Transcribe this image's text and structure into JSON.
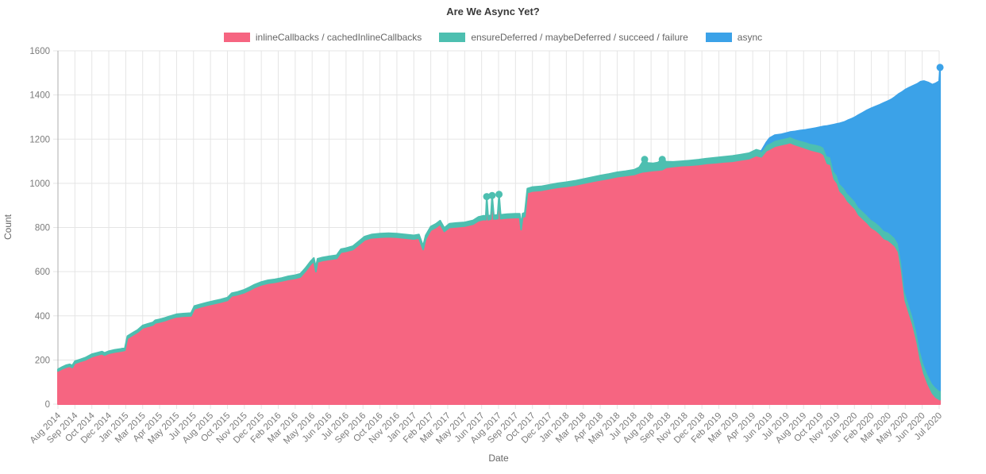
{
  "chart_data": {
    "type": "area",
    "stacked": true,
    "title": "Are We Async Yet?",
    "xlabel": "Date",
    "ylabel": "Count",
    "ylim": [
      0,
      1600
    ],
    "yticks": [
      0,
      200,
      400,
      600,
      800,
      1000,
      1200,
      1400,
      1600
    ],
    "grid": true,
    "legend_position": "top",
    "colors": {
      "background": "#ffffff",
      "grid": "#e5e5e5",
      "axis_line": "#aeaeae",
      "tick_text": "#7b7b7b",
      "title_text": "#3a3a3a",
      "axis_title_text": "#666666"
    },
    "series": [
      {
        "name": "inlineCallbacks / cachedInlineCallbacks",
        "color": "#f66581"
      },
      {
        "name": "ensureDeferred / maybeDeferred / succeed / failure",
        "color": "#4dbfb0"
      },
      {
        "name": "async",
        "color": "#3ba2e8"
      }
    ],
    "xticklabels": [
      "Aug 2014",
      "Sep 2014",
      "Oct 2014",
      "Dec 2014",
      "Jan 2015",
      "Mar 2015",
      "Apr 2015",
      "May 2015",
      "Jul 2015",
      "Aug 2015",
      "Oct 2015",
      "Nov 2015",
      "Dec 2015",
      "Feb 2016",
      "Mar 2016",
      "May 2016",
      "Jun 2016",
      "Jul 2016",
      "Sep 2016",
      "Oct 2016",
      "Nov 2016",
      "Jan 2017",
      "Feb 2017",
      "Mar 2017",
      "May 2017",
      "Jun 2017",
      "Aug 2017",
      "Sep 2017",
      "Oct 2017",
      "Dec 2017",
      "Jan 2018",
      "Mar 2018",
      "Apr 2018",
      "May 2018",
      "Jul 2018",
      "Aug 2018",
      "Sep 2018",
      "Nov 2018",
      "Dec 2018",
      "Feb 2019",
      "Mar 2019",
      "Apr 2019",
      "Jun 2019",
      "Jul 2019",
      "Aug 2019",
      "Oct 2019",
      "Nov 2019",
      "Jan 2020",
      "Feb 2020",
      "Mar 2020",
      "May 2020",
      "Jun 2020",
      "Jul 2020"
    ],
    "points_format": [
      "x_tick_units",
      "inlineCallbacks_top",
      "ensureDeferred_top",
      "total_top_incl_async"
    ],
    "points": [
      [
        0,
        150,
        158,
        158
      ],
      [
        0.25,
        160,
        168,
        168
      ],
      [
        0.5,
        168,
        177,
        177
      ],
      [
        0.7,
        172,
        180,
        180
      ],
      [
        0.85,
        166,
        175,
        175
      ],
      [
        1,
        185,
        194,
        194
      ],
      [
        1.3,
        193,
        202,
        202
      ],
      [
        1.6,
        200,
        210,
        210
      ],
      [
        2,
        215,
        226,
        226
      ],
      [
        2.3,
        222,
        232,
        232
      ],
      [
        2.6,
        228,
        238,
        238
      ],
      [
        2.75,
        222,
        232,
        232
      ],
      [
        3,
        230,
        240,
        240
      ],
      [
        3.35,
        236,
        246,
        246
      ],
      [
        3.7,
        240,
        250,
        250
      ],
      [
        3.95,
        244,
        254,
        254
      ],
      [
        4.1,
        298,
        308,
        308
      ],
      [
        4.4,
        312,
        322,
        322
      ],
      [
        4.7,
        326,
        336,
        336
      ],
      [
        5,
        345,
        356,
        356
      ],
      [
        5.3,
        352,
        363,
        363
      ],
      [
        5.6,
        358,
        370,
        370
      ],
      [
        5.75,
        368,
        380,
        380
      ],
      [
        6,
        372,
        384,
        384
      ],
      [
        6.3,
        378,
        390,
        390
      ],
      [
        6.6,
        386,
        398,
        398
      ],
      [
        7,
        395,
        407,
        407
      ],
      [
        7.4,
        398,
        410,
        410
      ],
      [
        7.85,
        400,
        412,
        412
      ],
      [
        8.05,
        432,
        444,
        444
      ],
      [
        8.4,
        440,
        452,
        452
      ],
      [
        8.8,
        448,
        460,
        460
      ],
      [
        9.2,
        455,
        467,
        467
      ],
      [
        9.6,
        462,
        474,
        474
      ],
      [
        10,
        470,
        482,
        482
      ],
      [
        10.25,
        490,
        502,
        502
      ],
      [
        10.6,
        496,
        508,
        508
      ],
      [
        11,
        505,
        518,
        518
      ],
      [
        11.3,
        516,
        529,
        529
      ],
      [
        11.6,
        528,
        541,
        541
      ],
      [
        12,
        540,
        553,
        553
      ],
      [
        12.4,
        548,
        561,
        561
      ],
      [
        12.8,
        552,
        565,
        565
      ],
      [
        13.2,
        558,
        571,
        571
      ],
      [
        13.6,
        565,
        579,
        579
      ],
      [
        14,
        570,
        584,
        584
      ],
      [
        14.3,
        576,
        590,
        590
      ],
      [
        14.6,
        602,
        616,
        616
      ],
      [
        14.9,
        632,
        646,
        646
      ],
      [
        15.1,
        648,
        662,
        662
      ],
      [
        15.22,
        600,
        620,
        620
      ],
      [
        15.32,
        644,
        658,
        658
      ],
      [
        15.6,
        650,
        664,
        664
      ],
      [
        16,
        655,
        669,
        669
      ],
      [
        16.45,
        660,
        674,
        674
      ],
      [
        16.7,
        688,
        702,
        702
      ],
      [
        17,
        692,
        706,
        706
      ],
      [
        17.4,
        700,
        715,
        715
      ],
      [
        17.75,
        722,
        737,
        737
      ],
      [
        18.1,
        744,
        759,
        759
      ],
      [
        18.5,
        753,
        768,
        768
      ],
      [
        19,
        756,
        772,
        772
      ],
      [
        19.5,
        758,
        774,
        774
      ],
      [
        20,
        756,
        772,
        772
      ],
      [
        20.5,
        752,
        768,
        768
      ],
      [
        21,
        748,
        764,
        764
      ],
      [
        21.3,
        752,
        768,
        768
      ],
      [
        21.55,
        700,
        716,
        716
      ],
      [
        21.7,
        748,
        764,
        764
      ],
      [
        22,
        788,
        804,
        804
      ],
      [
        22.3,
        800,
        816,
        816
      ],
      [
        22.55,
        815,
        831,
        831
      ],
      [
        22.8,
        782,
        798,
        798
      ],
      [
        23.1,
        800,
        817,
        817
      ],
      [
        23.5,
        803,
        820,
        820
      ],
      [
        24,
        806,
        823,
        823
      ],
      [
        24.5,
        815,
        832,
        832
      ],
      [
        24.8,
        830,
        847,
        847
      ],
      [
        25.1,
        836,
        853,
        853
      ],
      [
        25.25,
        835,
        852,
        852
      ],
      [
        25.3,
        920,
        940,
        940
      ],
      [
        25.38,
        835,
        852,
        852
      ],
      [
        25.55,
        838,
        855,
        855
      ],
      [
        25.62,
        925,
        945,
        945
      ],
      [
        25.72,
        838,
        855,
        855
      ],
      [
        25.95,
        840,
        857,
        857
      ],
      [
        26.03,
        930,
        950,
        950
      ],
      [
        26.12,
        840,
        857,
        857
      ],
      [
        26.5,
        843,
        860,
        860
      ],
      [
        27,
        845,
        862,
        862
      ],
      [
        27.25,
        845,
        862,
        862
      ],
      [
        27.33,
        790,
        808,
        808
      ],
      [
        27.42,
        846,
        863,
        863
      ],
      [
        27.55,
        850,
        867,
        867
      ],
      [
        27.7,
        958,
        976,
        976
      ],
      [
        28,
        965,
        983,
        983
      ],
      [
        28.5,
        968,
        986,
        986
      ],
      [
        29,
        975,
        993,
        993
      ],
      [
        29.5,
        982,
        1000,
        1000
      ],
      [
        30,
        986,
        1005,
        1005
      ],
      [
        30.5,
        992,
        1011,
        1011
      ],
      [
        31,
        1000,
        1019,
        1019
      ],
      [
        31.5,
        1008,
        1027,
        1027
      ],
      [
        32,
        1015,
        1035,
        1035
      ],
      [
        32.5,
        1022,
        1042,
        1042
      ],
      [
        33,
        1030,
        1050,
        1050
      ],
      [
        33.5,
        1035,
        1055,
        1055
      ],
      [
        34,
        1040,
        1061,
        1061
      ],
      [
        34.3,
        1048,
        1072,
        1072
      ],
      [
        34.5,
        1052,
        1096,
        1096
      ],
      [
        34.62,
        1053,
        1108,
        1108
      ],
      [
        34.8,
        1055,
        1092,
        1092
      ],
      [
        35.1,
        1058,
        1090,
        1090
      ],
      [
        35.4,
        1060,
        1094,
        1094
      ],
      [
        35.66,
        1062,
        1108,
        1108
      ],
      [
        35.9,
        1072,
        1098,
        1098
      ],
      [
        36.3,
        1076,
        1097,
        1097
      ],
      [
        36.8,
        1080,
        1100,
        1100
      ],
      [
        37.3,
        1082,
        1103,
        1103
      ],
      [
        37.8,
        1085,
        1107,
        1107
      ],
      [
        38.3,
        1090,
        1112,
        1112
      ],
      [
        38.8,
        1093,
        1116,
        1116
      ],
      [
        39.3,
        1097,
        1120,
        1120
      ],
      [
        39.8,
        1100,
        1124,
        1124
      ],
      [
        40.3,
        1106,
        1130,
        1130
      ],
      [
        40.8,
        1112,
        1137,
        1137
      ],
      [
        41.2,
        1126,
        1152,
        1152
      ],
      [
        41.5,
        1120,
        1146,
        1146
      ],
      [
        41.8,
        1148,
        1176,
        1185
      ],
      [
        42,
        1155,
        1183,
        1205
      ],
      [
        42.3,
        1168,
        1196,
        1218
      ],
      [
        42.7,
        1175,
        1203,
        1222
      ],
      [
        43,
        1180,
        1208,
        1228
      ],
      [
        43.2,
        1185,
        1213,
        1232
      ],
      [
        43.5,
        1175,
        1203,
        1235
      ],
      [
        43.8,
        1168,
        1196,
        1239
      ],
      [
        44.1,
        1160,
        1190,
        1242
      ],
      [
        44.4,
        1152,
        1182,
        1246
      ],
      [
        44.7,
        1146,
        1178,
        1250
      ],
      [
        45,
        1140,
        1172,
        1255
      ],
      [
        45.2,
        1130,
        1163,
        1258
      ],
      [
        45.4,
        1090,
        1125,
        1260
      ],
      [
        45.6,
        1085,
        1120,
        1263
      ],
      [
        45.8,
        1020,
        1056,
        1266
      ],
      [
        46,
        1000,
        1036,
        1270
      ],
      [
        46.15,
        965,
        1000,
        1272
      ],
      [
        46.4,
        945,
        980,
        1278
      ],
      [
        46.6,
        920,
        956,
        1285
      ],
      [
        46.85,
        900,
        936,
        1293
      ],
      [
        47.05,
        885,
        920,
        1300
      ],
      [
        47.25,
        858,
        894,
        1310
      ],
      [
        47.5,
        840,
        876,
        1320
      ],
      [
        47.75,
        822,
        858,
        1331
      ],
      [
        48,
        800,
        837,
        1340
      ],
      [
        48.25,
        788,
        825,
        1348
      ],
      [
        48.5,
        772,
        809,
        1356
      ],
      [
        48.75,
        750,
        788,
        1365
      ],
      [
        49,
        742,
        780,
        1373
      ],
      [
        49.2,
        730,
        768,
        1381
      ],
      [
        49.4,
        716,
        754,
        1392
      ],
      [
        49.6,
        690,
        728,
        1404
      ],
      [
        49.8,
        600,
        640,
        1413
      ],
      [
        50,
        470,
        510,
        1424
      ],
      [
        50.2,
        420,
        460,
        1432
      ],
      [
        50.45,
        360,
        400,
        1441
      ],
      [
        50.7,
        280,
        322,
        1450
      ],
      [
        50.9,
        200,
        243,
        1460
      ],
      [
        51.1,
        140,
        184,
        1463
      ],
      [
        51.35,
        90,
        135,
        1457
      ],
      [
        51.6,
        50,
        96,
        1447
      ],
      [
        51.8,
        32,
        78,
        1453
      ],
      [
        52,
        22,
        64,
        1462
      ],
      [
        52.05,
        20,
        62,
        1525
      ]
    ],
    "point_markers": [
      {
        "u": 25.3,
        "value": 940,
        "series": 1
      },
      {
        "u": 25.62,
        "value": 945,
        "series": 1
      },
      {
        "u": 26.03,
        "value": 950,
        "series": 1
      },
      {
        "u": 34.62,
        "value": 1108,
        "series": 1
      },
      {
        "u": 35.66,
        "value": 1108,
        "series": 1
      },
      {
        "u": 52.05,
        "value": 1525,
        "series": 2
      }
    ]
  }
}
